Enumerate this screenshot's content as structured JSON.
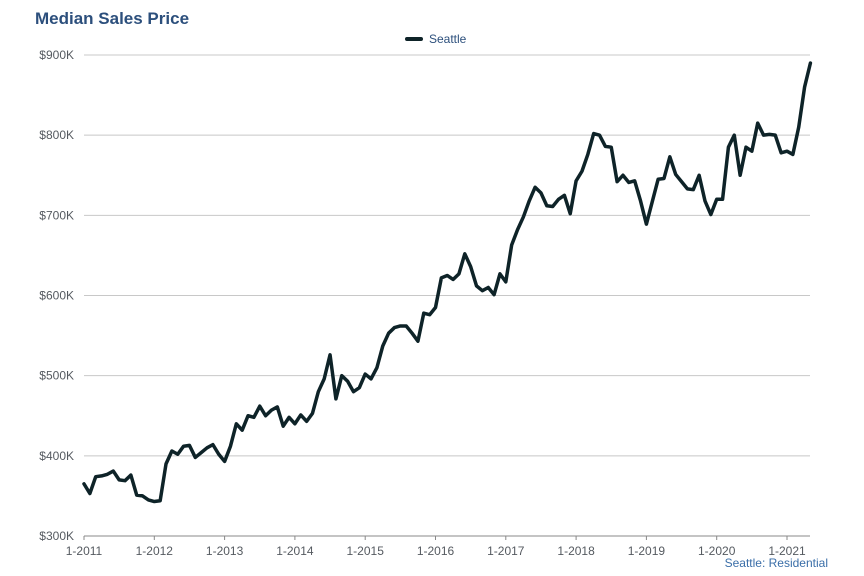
{
  "title": "Median Sales Price",
  "footnote": "Seattle: Residential",
  "colors": {
    "line": "#0e2328",
    "grid": "#c8c8c8",
    "title": "#2c4f7c"
  },
  "chart_data": {
    "type": "line",
    "title": "Median Sales Price",
    "legend": {
      "position": "top-center",
      "entries": [
        "Seattle"
      ]
    },
    "grid": true,
    "ylim": [
      300000,
      900000
    ],
    "y_ticks": [
      300000,
      400000,
      500000,
      600000,
      700000,
      800000,
      900000
    ],
    "y_tick_labels": [
      "$300K",
      "$400K",
      "$500K",
      "$600K",
      "$700K",
      "$800K",
      "$900K"
    ],
    "x_ticks": [
      "1-2011",
      "1-2012",
      "1-2013",
      "1-2014",
      "1-2015",
      "1-2016",
      "1-2017",
      "1-2018",
      "1-2019",
      "1-2020",
      "1-2021"
    ],
    "x_start": "1-2011",
    "x_end": "5-2021",
    "series": [
      {
        "name": "Seattle",
        "values": [
          365000,
          353000,
          374000,
          375000,
          377000,
          381000,
          370000,
          369000,
          376000,
          351000,
          350000,
          345000,
          343000,
          344000,
          390000,
          406000,
          402000,
          412000,
          413000,
          398000,
          404000,
          410000,
          414000,
          402000,
          393000,
          412000,
          440000,
          432000,
          450000,
          448000,
          462000,
          450000,
          457000,
          461000,
          437000,
          448000,
          440000,
          451000,
          443000,
          453000,
          480000,
          496000,
          526000,
          471000,
          500000,
          493000,
          480000,
          485000,
          502000,
          496000,
          510000,
          537000,
          553000,
          560000,
          562000,
          562000,
          553000,
          543000,
          578000,
          576000,
          585000,
          622000,
          625000,
          620000,
          627000,
          652000,
          636000,
          612000,
          606000,
          610000,
          601000,
          627000,
          617000,
          663000,
          682000,
          698000,
          718000,
          735000,
          728000,
          712000,
          711000,
          720000,
          725000,
          702000,
          743000,
          755000,
          776000,
          802000,
          800000,
          786000,
          785000,
          742000,
          750000,
          741000,
          743000,
          718000,
          689000,
          717000,
          745000,
          746000,
          773000,
          751000,
          742000,
          733000,
          732000,
          750000,
          718000,
          701000,
          720000,
          720000,
          785000,
          800000,
          750000,
          785000,
          780000,
          815000,
          800000,
          801000,
          800000,
          778000,
          780000,
          776000,
          810000,
          860000,
          890000
        ]
      }
    ]
  }
}
